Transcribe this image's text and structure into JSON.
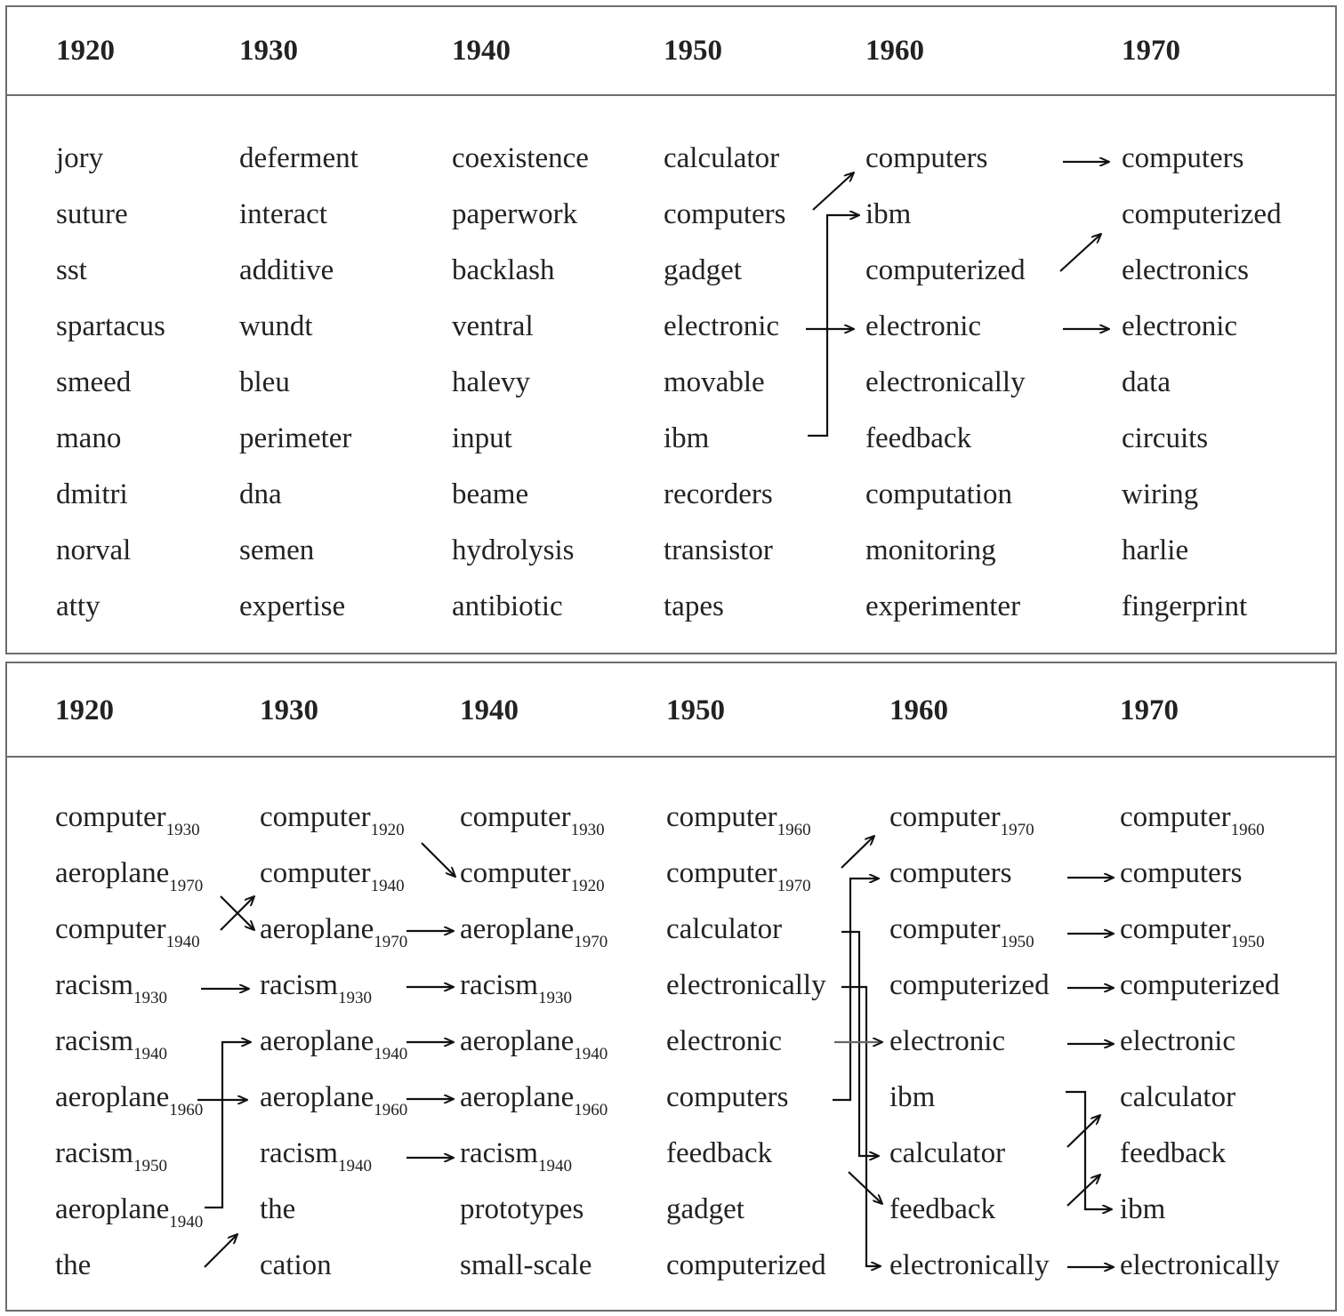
{
  "top_panel": {
    "years": [
      "1920",
      "1930",
      "1940",
      "1950",
      "1960",
      "1970"
    ],
    "columns": [
      [
        "jory",
        "suture",
        "sst",
        "spartacus",
        "smeed",
        "mano",
        "dmitri",
        "norval",
        "atty"
      ],
      [
        "deferment",
        "interact",
        "additive",
        "wundt",
        "bleu",
        "perimeter",
        "dna",
        "semen",
        "expertise"
      ],
      [
        "coexistence",
        "paperwork",
        "backlash",
        "ventral",
        "halevy",
        "input",
        "beame",
        "hydrolysis",
        "antibiotic"
      ],
      [
        "calculator",
        "computers",
        "gadget",
        "electronic",
        "movable",
        "ibm",
        "recorders",
        "transistor",
        "tapes"
      ],
      [
        "computers",
        "ibm",
        "computerized",
        "electronic",
        "electronically",
        "feedback",
        "computation",
        "monitoring",
        "experimenter"
      ],
      [
        "computers",
        "computerized",
        "electronics",
        "electronic",
        "data",
        "circuits",
        "wiring",
        "harlie",
        "fingerprint"
      ]
    ]
  },
  "bottom_panel": {
    "years": [
      "1920",
      "1930",
      "1940",
      "1950",
      "1960",
      "1970"
    ],
    "columns": [
      [
        {
          "w": "computer",
          "s": "1930"
        },
        {
          "w": "aeroplane",
          "s": "1970"
        },
        {
          "w": "computer",
          "s": "1940"
        },
        {
          "w": "racism",
          "s": "1930"
        },
        {
          "w": "racism",
          "s": "1940"
        },
        {
          "w": "aeroplane",
          "s": "1960"
        },
        {
          "w": "racism",
          "s": "1950"
        },
        {
          "w": "aeroplane",
          "s": "1940"
        },
        {
          "w": "the",
          "s": ""
        }
      ],
      [
        {
          "w": "computer",
          "s": "1920"
        },
        {
          "w": "computer",
          "s": "1940"
        },
        {
          "w": "aeroplane",
          "s": "1970"
        },
        {
          "w": "racism",
          "s": "1930"
        },
        {
          "w": "aeroplane",
          "s": "1940"
        },
        {
          "w": "aeroplane",
          "s": "1960"
        },
        {
          "w": "racism",
          "s": "1940"
        },
        {
          "w": "the",
          "s": ""
        },
        {
          "w": "cation",
          "s": ""
        }
      ],
      [
        {
          "w": "computer",
          "s": "1930"
        },
        {
          "w": "computer",
          "s": "1920"
        },
        {
          "w": "aeroplane",
          "s": "1970"
        },
        {
          "w": "racism",
          "s": "1930"
        },
        {
          "w": "aeroplane",
          "s": "1940"
        },
        {
          "w": "aeroplane",
          "s": "1960"
        },
        {
          "w": "racism",
          "s": "1940"
        },
        {
          "w": "prototypes",
          "s": ""
        },
        {
          "w": "small-scale",
          "s": ""
        }
      ],
      [
        {
          "w": "computer",
          "s": "1960"
        },
        {
          "w": "computer",
          "s": "1970"
        },
        {
          "w": "calculator",
          "s": ""
        },
        {
          "w": "electronically",
          "s": ""
        },
        {
          "w": "electronic",
          "s": ""
        },
        {
          "w": "computers",
          "s": ""
        },
        {
          "w": "feedback",
          "s": ""
        },
        {
          "w": "gadget",
          "s": ""
        },
        {
          "w": "computerized",
          "s": ""
        }
      ],
      [
        {
          "w": "computer",
          "s": "1970"
        },
        {
          "w": "computers",
          "s": ""
        },
        {
          "w": "computer",
          "s": "1950"
        },
        {
          "w": "computerized",
          "s": ""
        },
        {
          "w": "electronic",
          "s": ""
        },
        {
          "w": "ibm",
          "s": ""
        },
        {
          "w": "calculator",
          "s": ""
        },
        {
          "w": "feedback",
          "s": ""
        },
        {
          "w": "electronically",
          "s": ""
        }
      ],
      [
        {
          "w": "computer",
          "s": "1960"
        },
        {
          "w": "computers",
          "s": ""
        },
        {
          "w": "computer",
          "s": "1950"
        },
        {
          "w": "computerized",
          "s": ""
        },
        {
          "w": "electronic",
          "s": ""
        },
        {
          "w": "calculator",
          "s": ""
        },
        {
          "w": "feedback",
          "s": ""
        },
        {
          "w": "ibm",
          "s": ""
        },
        {
          "w": "electronically",
          "s": ""
        }
      ]
    ]
  }
}
